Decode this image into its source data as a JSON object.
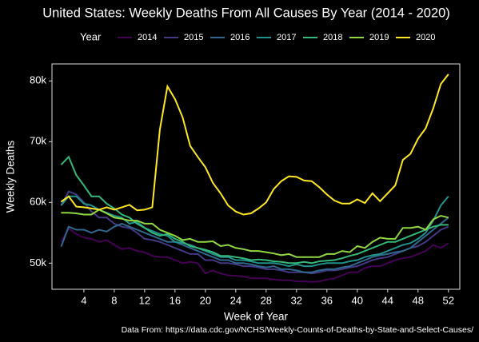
{
  "chart_data": {
    "type": "line",
    "title": "United States: Weekly Deaths From All Causes By Year (2014 - 2020)",
    "legend_title": "Year",
    "x_label": "Week of Year",
    "y_label": "Weekly Deaths",
    "caption": "Data From: https://data.cdc.gov/NCHS/Weekly-Counts-of-Deaths-by-State-and-Select-Causes/",
    "x": [
      1,
      2,
      3,
      4,
      5,
      6,
      7,
      8,
      9,
      10,
      11,
      12,
      13,
      14,
      15,
      16,
      17,
      18,
      19,
      20,
      21,
      22,
      23,
      24,
      25,
      26,
      27,
      28,
      29,
      30,
      31,
      32,
      33,
      34,
      35,
      36,
      37,
      38,
      39,
      40,
      41,
      42,
      43,
      44,
      45,
      46,
      47,
      48,
      49,
      50,
      51,
      52
    ],
    "xlim": [
      -0.2,
      53.5
    ],
    "xticks": [
      4,
      8,
      12,
      16,
      20,
      24,
      28,
      32,
      36,
      40,
      44,
      48,
      52
    ],
    "ylim": [
      45.7,
      82.8
    ],
    "yticks": [
      {
        "value": 50,
        "label": "50k"
      },
      {
        "value": 60,
        "label": "60k"
      },
      {
        "value": 70,
        "label": "70k"
      },
      {
        "value": 80,
        "label": "80k"
      }
    ],
    "series": [
      {
        "name": "2014",
        "color": "#440154",
        "values": [
          53.5,
          55.7,
          54.8,
          54.2,
          54,
          53.5,
          53.8,
          53,
          52.3,
          52.5,
          52,
          51.8,
          51.2,
          51,
          51,
          50.5,
          50,
          50.2,
          50,
          48.3,
          48.8,
          48.3,
          48,
          47.9,
          47.8,
          47.5,
          47.5,
          47.5,
          47.3,
          47.2,
          47.2,
          47,
          47,
          46.9,
          47,
          47.3,
          47.5,
          48,
          48.5,
          48.5,
          49.2,
          49.5,
          49.5,
          50,
          50.5,
          50.8,
          51,
          51.5,
          52,
          53,
          52.5,
          53.3
        ]
      },
      {
        "name": "2015",
        "color": "#443983",
        "values": [
          59.5,
          61.8,
          61.3,
          60,
          58.5,
          57.5,
          57.5,
          56.5,
          56,
          55.8,
          55,
          54,
          53.8,
          53.5,
          53,
          52.5,
          52,
          51.5,
          51.5,
          50.5,
          50.5,
          50,
          50,
          49.8,
          49.5,
          49.5,
          49.3,
          49,
          49,
          48.8,
          48.5,
          48.5,
          48.5,
          48.3,
          48.5,
          48.8,
          48.8,
          49,
          49.3,
          49.5,
          50,
          50.5,
          50.8,
          51,
          51.5,
          52,
          52.5,
          52.8,
          53.5,
          54.5,
          55.5,
          56
        ]
      },
      {
        "name": "2016",
        "color": "#31688e",
        "values": [
          52.7,
          56,
          55.5,
          55.5,
          55,
          55.5,
          55.2,
          56,
          56.5,
          56,
          55.5,
          55,
          54.5,
          54,
          53.5,
          53.5,
          53,
          52.5,
          52,
          51.5,
          51,
          50.5,
          50.5,
          50,
          50,
          49.8,
          49.5,
          49.3,
          49.5,
          49,
          49,
          48.8,
          48.5,
          48.5,
          48.8,
          49,
          49,
          49.3,
          49.5,
          50,
          50.5,
          51,
          51.3,
          51.5,
          51.8,
          52,
          52.5,
          53.5,
          54.5,
          55.5,
          56.5,
          57.5
        ]
      },
      {
        "name": "2017",
        "color": "#21918c",
        "values": [
          59.5,
          61,
          61,
          59.8,
          59.5,
          58.8,
          58.3,
          57.8,
          57.5,
          56.5,
          56.8,
          55.8,
          55.3,
          54.8,
          54.5,
          53.5,
          53.3,
          53,
          52.5,
          52,
          51.5,
          51,
          51,
          50.5,
          50.5,
          50.3,
          50,
          50,
          50,
          49.8,
          49.5,
          49.8,
          49.5,
          49.5,
          49.8,
          50,
          50,
          50,
          50.3,
          50.5,
          51,
          51.3,
          51.5,
          52,
          52.5,
          53,
          53.3,
          54,
          55,
          57,
          59.5,
          61
        ]
      },
      {
        "name": "2018",
        "color": "#35b779",
        "values": [
          66.2,
          67.5,
          64.5,
          62.8,
          61,
          61,
          59.8,
          59,
          58,
          57.5,
          56.5,
          55.8,
          55,
          54.5,
          54.8,
          54,
          53.5,
          52.8,
          52.5,
          52.2,
          51.8,
          51.2,
          51.2,
          51,
          50.8,
          50.5,
          50.6,
          50.5,
          50.3,
          50.2,
          50,
          50,
          50.2,
          50,
          50.3,
          50.4,
          50.5,
          50.8,
          51.2,
          51.5,
          52,
          52.5,
          53,
          53.5,
          53.5,
          54,
          54.5,
          55,
          55.5,
          56,
          56.3,
          56.3
        ]
      },
      {
        "name": "2019",
        "color": "#90d743",
        "values": [
          58.3,
          58.3,
          58.2,
          58,
          58,
          58.8,
          58.2,
          57.5,
          57.3,
          57,
          57,
          56.5,
          56.5,
          55.5,
          55,
          54.5,
          53.8,
          54,
          53.5,
          53.5,
          53.6,
          52.8,
          53,
          52.5,
          52.3,
          52,
          52,
          51.8,
          51.6,
          51.3,
          51.5,
          51,
          51,
          51,
          51,
          51.5,
          51.5,
          52,
          51.8,
          52.8,
          52.5,
          53.5,
          54.2,
          54,
          54,
          55.8,
          55.8,
          56,
          55.5,
          57.2,
          57.8,
          57.5
        ]
      },
      {
        "name": "2020",
        "color": "#fde725",
        "values": [
          60.1,
          61,
          59.3,
          59.2,
          59,
          58.8,
          59.2,
          58.8,
          59.2,
          59.6,
          58.7,
          58.8,
          59.2,
          72,
          79.1,
          77,
          74,
          69.3,
          67.5,
          65.8,
          63.2,
          61.5,
          59.5,
          58.5,
          58,
          58.2,
          59,
          60,
          62.2,
          63.5,
          64.3,
          64.2,
          63.6,
          63.5,
          62.5,
          61.3,
          60.3,
          59.8,
          59.8,
          60.5,
          59.9,
          61.5,
          60.2,
          61.5,
          62.8,
          67,
          68,
          70.5,
          72.2,
          75.5,
          79.5,
          81.1
        ]
      }
    ]
  }
}
